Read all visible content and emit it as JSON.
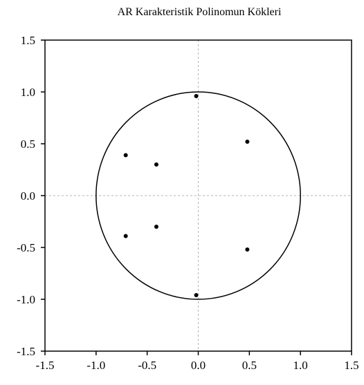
{
  "chart_data": {
    "type": "scatter",
    "title": "AR Karakteristik Polinomun Kökleri",
    "xlabel": "",
    "ylabel": "",
    "xlim": [
      -1.5,
      1.5
    ],
    "ylim": [
      -1.5,
      1.5
    ],
    "x_ticks": [
      "-1.5",
      "-1.0",
      "-0.5",
      "0.0",
      "0.5",
      "1.0",
      "1.5"
    ],
    "y_ticks": [
      "1.5",
      "1.0",
      "0.5",
      "0.0",
      "-0.5",
      "-1.0",
      "-1.5"
    ],
    "grid": false,
    "reference_lines": {
      "x": 0,
      "y": 0
    },
    "unit_circle_radius": 1.0,
    "points": [
      {
        "x": -0.02,
        "y": 0.96
      },
      {
        "x": -0.02,
        "y": -0.96
      },
      {
        "x": 0.48,
        "y": 0.52
      },
      {
        "x": 0.48,
        "y": -0.52
      },
      {
        "x": -0.71,
        "y": 0.39
      },
      {
        "x": -0.71,
        "y": -0.39
      },
      {
        "x": -0.41,
        "y": 0.3
      },
      {
        "x": -0.41,
        "y": -0.3
      }
    ],
    "colors": {
      "points": "#000000",
      "frame": "#000000",
      "circle": "#000000",
      "reference_lines": "#b4b4b4"
    }
  }
}
